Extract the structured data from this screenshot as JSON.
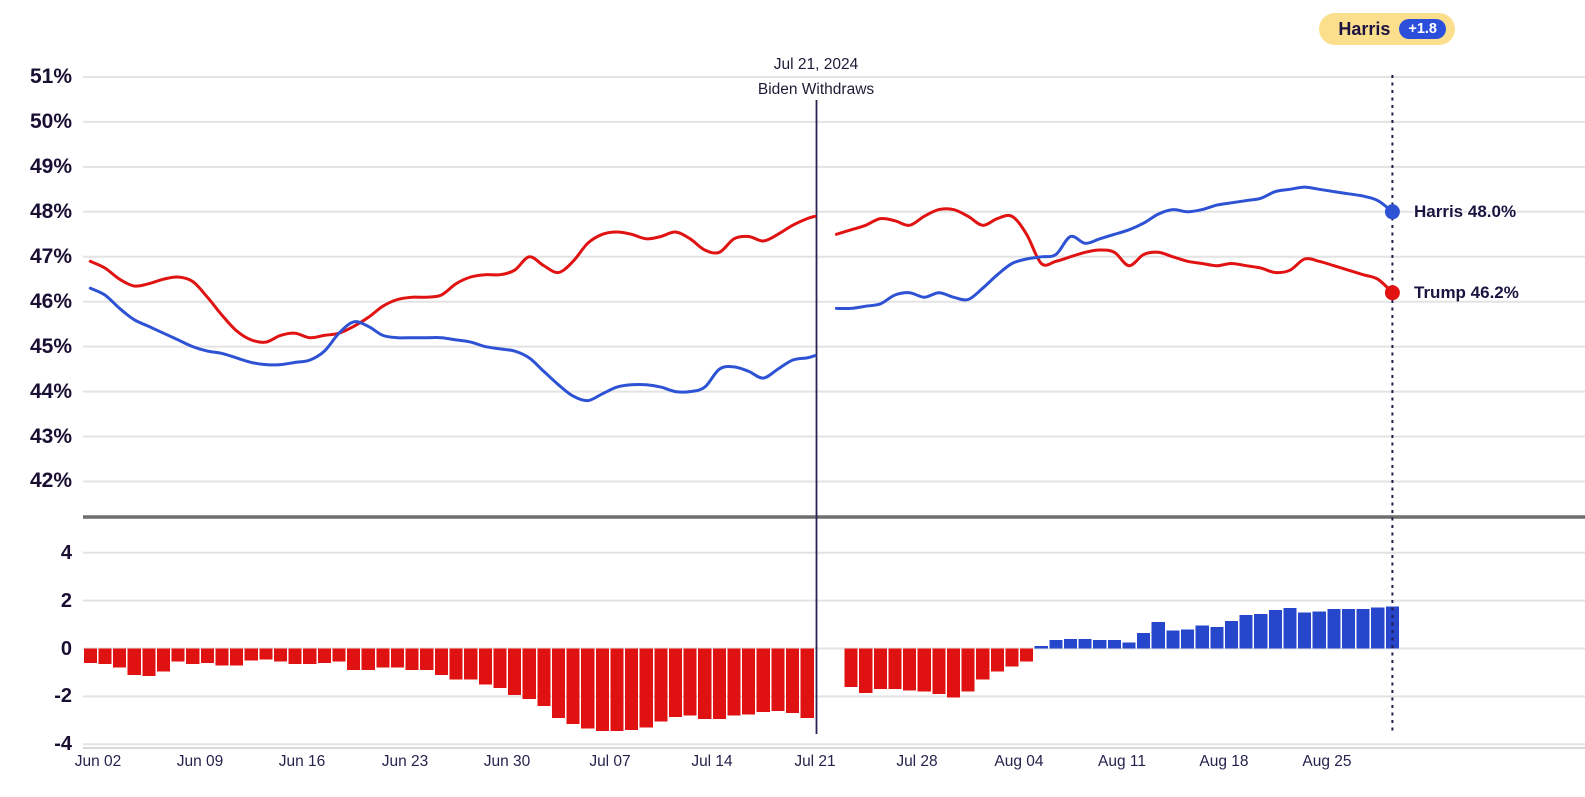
{
  "leader_badge": {
    "label": "Harris",
    "margin": "+1.8"
  },
  "annotation": {
    "line1": "Jul 21, 2024",
    "line2": "Biden Withdraws",
    "date_offset": 50
  },
  "end_labels": {
    "harris": "Harris 48.0%",
    "trump": "Trump 46.2%"
  },
  "colors": {
    "harris_blue": "#2e52d4",
    "trump_red": "#e01212",
    "bar_blue": "#2647cc",
    "bar_red": "#e01111",
    "navy_text": "#1d1340",
    "badge_bg": "#fbdf8c",
    "badge_pill_bg": "#2b4fdb",
    "gridline": "#e3e3e3",
    "axis_line": "#d9d9d9",
    "separator": "#6e6e6e",
    "event_line": "#2c2153",
    "end_dotted_line": "#221a4a"
  },
  "chart_data": [
    {
      "type": "line",
      "title": "Polling averages, Harris/Biden vs Trump",
      "ylim": [
        41.5,
        51.5
      ],
      "grid": true,
      "legend_position": "inline-right",
      "yticks": [
        {
          "label": "51%",
          "v": 51
        },
        {
          "label": "50%",
          "v": 50
        },
        {
          "label": "49%",
          "v": 49
        },
        {
          "label": "48%",
          "v": 48
        },
        {
          "label": "47%",
          "v": 47
        },
        {
          "label": "46%",
          "v": 46
        },
        {
          "label": "45%",
          "v": 45
        },
        {
          "label": "44%",
          "v": 44
        },
        {
          "label": "43%",
          "v": 43
        },
        {
          "label": "42%",
          "v": 42
        }
      ],
      "series": [
        {
          "name": "Trump",
          "color_key": "trump_red",
          "end_value": 46.2,
          "segments": [
            {
              "start": "Jun 01",
              "frequency": "daily",
              "start_offset": 0,
              "values": [
                46.9,
                46.75,
                46.5,
                46.35,
                46.4,
                46.5,
                46.55,
                46.45,
                46.1,
                45.7,
                45.35,
                45.15,
                45.1,
                45.25,
                45.3,
                45.2,
                45.25,
                45.3,
                45.45,
                45.65,
                45.9,
                46.05,
                46.1,
                46.1,
                46.15,
                46.4,
                46.55,
                46.6,
                46.6,
                46.7,
                47.0,
                46.8,
                46.65,
                46.9,
                47.3,
                47.5,
                47.55,
                47.5,
                47.4,
                47.45,
                47.55,
                47.4,
                47.15,
                47.1,
                47.4,
                47.45,
                47.35,
                47.5,
                47.7,
                47.85,
                47.9
              ]
            },
            {
              "start": "Jul 22",
              "frequency": "daily",
              "start_offset": 51,
              "values": [
                47.5,
                47.6,
                47.7,
                47.85,
                47.8,
                47.7,
                47.9,
                48.05,
                48.05,
                47.9,
                47.7,
                47.85,
                47.9,
                47.5,
                46.85,
                46.9,
                47.0,
                47.1,
                47.15,
                47.1,
                46.8,
                47.05,
                47.1,
                47.0,
                46.9,
                46.85,
                46.8,
                46.85,
                46.8,
                46.75,
                46.65,
                46.7,
                46.95,
                46.9,
                46.8,
                46.7,
                46.6,
                46.5,
                46.2
              ]
            }
          ]
        },
        {
          "name": "Harris (Biden before Jul 21)",
          "color_key": "harris_blue",
          "end_value": 48.0,
          "segments": [
            {
              "start": "Jun 01",
              "frequency": "daily",
              "start_offset": 0,
              "values": [
                46.3,
                46.15,
                45.85,
                45.6,
                45.45,
                45.3,
                45.15,
                45.0,
                44.9,
                44.85,
                44.75,
                44.65,
                44.6,
                44.6,
                44.65,
                44.7,
                44.9,
                45.3,
                45.55,
                45.45,
                45.25,
                45.2,
                45.2,
                45.2,
                45.2,
                45.15,
                45.1,
                45.0,
                44.95,
                44.9,
                44.75,
                44.45,
                44.15,
                43.9,
                43.8,
                43.95,
                44.1,
                44.15,
                44.15,
                44.1,
                44.0,
                44.0,
                44.1,
                44.5,
                44.55,
                44.45,
                44.3,
                44.5,
                44.7,
                44.75,
                44.8
              ]
            },
            {
              "start": "Jul 22",
              "frequency": "daily",
              "start_offset": 51,
              "values": [
                45.85,
                45.85,
                45.9,
                45.95,
                46.15,
                46.2,
                46.1,
                46.2,
                46.1,
                46.05,
                46.3,
                46.6,
                46.85,
                46.95,
                47.0,
                47.05,
                47.45,
                47.3,
                47.4,
                47.5,
                47.6,
                47.75,
                47.95,
                48.05,
                48.0,
                48.05,
                48.15,
                48.2,
                48.25,
                48.3,
                48.45,
                48.5,
                48.55,
                48.5,
                48.45,
                48.4,
                48.35,
                48.25,
                48.0
              ]
            }
          ]
        }
      ],
      "xticks": [
        {
          "label": "Jun 02",
          "offset": 1
        },
        {
          "label": "Jun 09",
          "offset": 8
        },
        {
          "label": "Jun 16",
          "offset": 15
        },
        {
          "label": "Jun 23",
          "offset": 22
        },
        {
          "label": "Jun 30",
          "offset": 29
        },
        {
          "label": "Jul 07",
          "offset": 36
        },
        {
          "label": "Jul 14",
          "offset": 43
        },
        {
          "label": "Jul 21",
          "offset": 50
        },
        {
          "label": "Jul 28",
          "offset": 57
        },
        {
          "label": "Aug 04",
          "offset": 64
        },
        {
          "label": "Aug 11",
          "offset": 71
        },
        {
          "label": "Aug 18",
          "offset": 78
        },
        {
          "label": "Aug 25",
          "offset": 85
        }
      ]
    },
    {
      "type": "bar",
      "title": "Lead margin (Harris/Biden minus Trump, pct pts)",
      "ylim": [
        -5,
        5
      ],
      "grid": true,
      "yticks": [
        {
          "label": "4",
          "v": 4
        },
        {
          "label": "2",
          "v": 2
        },
        {
          "label": "0",
          "v": 0
        },
        {
          "label": "-2",
          "v": -2
        },
        {
          "label": "-4",
          "v": -4
        }
      ],
      "start": "Jun 01",
      "frequency": "daily",
      "values": [
        -0.6,
        -0.65,
        -0.8,
        -1.1,
        -1.15,
        -0.95,
        -0.55,
        -0.65,
        -0.6,
        -0.7,
        -0.7,
        -0.5,
        -0.45,
        -0.55,
        -0.65,
        -0.65,
        -0.6,
        -0.55,
        -0.9,
        -0.9,
        -0.8,
        -0.8,
        -0.9,
        -0.9,
        -1.1,
        -1.3,
        -1.3,
        -1.5,
        -1.65,
        -1.95,
        -2.1,
        -2.4,
        -2.9,
        -3.15,
        -3.35,
        -3.45,
        -3.45,
        -3.4,
        -3.3,
        -3.05,
        -2.85,
        -2.8,
        -2.95,
        -2.95,
        -2.8,
        -2.75,
        -2.65,
        -2.6,
        -2.7,
        -2.9,
        null,
        null,
        -1.6,
        -1.85,
        -1.7,
        -1.7,
        -1.75,
        -1.8,
        -1.9,
        -2.05,
        -1.8,
        -1.3,
        -0.95,
        -0.75,
        -0.55,
        0.1,
        0.35,
        0.4,
        0.4,
        0.35,
        0.35,
        0.25,
        0.65,
        1.1,
        0.75,
        0.8,
        0.95,
        0.9,
        1.15,
        1.4,
        1.45,
        1.6,
        1.7,
        1.5,
        1.55,
        1.65,
        1.65,
        1.65,
        1.72,
        1.75
      ]
    }
  ]
}
